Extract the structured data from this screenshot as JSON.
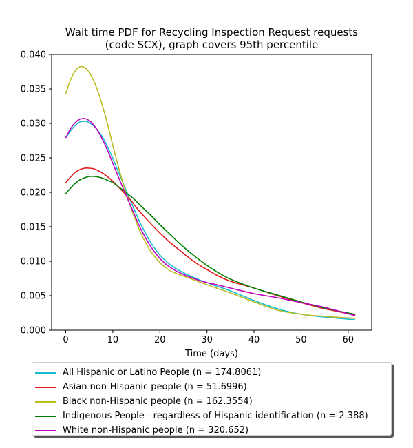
{
  "chart_data": {
    "type": "line",
    "title_line1": "Wait time PDF for Recycling Inspection Request  requests",
    "title_line2": "(code SCX), graph covers 95th percentile",
    "xlabel": "Time (days)",
    "ylabel": "",
    "xlim": [
      -3,
      65
    ],
    "ylim": [
      0,
      0.04
    ],
    "x_ticks": [
      0,
      10,
      20,
      30,
      40,
      50,
      60
    ],
    "y_ticks": [
      "0.000",
      "0.005",
      "0.010",
      "0.015",
      "0.020",
      "0.025",
      "0.030",
      "0.035",
      "0.040"
    ],
    "x": [
      0,
      1,
      2,
      3,
      4,
      5,
      6,
      7,
      8,
      9,
      10,
      12,
      14,
      15,
      16,
      18,
      20,
      22,
      24,
      26,
      28,
      30,
      32,
      35,
      40,
      45,
      50,
      55,
      61.5
    ],
    "series": [
      {
        "name": "All Hispanic or Latino People (n = 174.8061)",
        "color": "#17becf",
        "values": [
          0.0279,
          0.0289,
          0.0297,
          0.0302,
          0.0303,
          0.0301,
          0.0296,
          0.0288,
          0.0278,
          0.0264,
          0.0249,
          0.0216,
          0.0184,
          0.0168,
          0.0153,
          0.0128,
          0.0109,
          0.0096,
          0.0087,
          0.008,
          0.0074,
          0.0069,
          0.0064,
          0.0057,
          0.0043,
          0.0031,
          0.0023,
          0.0019,
          0.0015
        ]
      },
      {
        "name": "Asian non-Hispanic people (n = 51.6996)",
        "color": "#e41a1c",
        "values": [
          0.0214,
          0.0222,
          0.0229,
          0.0233,
          0.0235,
          0.0235,
          0.0234,
          0.0231,
          0.0227,
          0.0222,
          0.0216,
          0.0202,
          0.0187,
          0.0178,
          0.017,
          0.0155,
          0.0141,
          0.0128,
          0.0117,
          0.0106,
          0.0096,
          0.0088,
          0.008,
          0.0071,
          0.0061,
          0.005,
          0.004,
          0.0031,
          0.0022
        ]
      },
      {
        "name": "Black non-Hispanic people (n = 162.3554)",
        "color": "#bcbd22",
        "values": [
          0.0343,
          0.0363,
          0.0376,
          0.0382,
          0.0381,
          0.0374,
          0.0361,
          0.0343,
          0.0321,
          0.0296,
          0.0268,
          0.0217,
          0.0175,
          0.0157,
          0.014,
          0.0115,
          0.0098,
          0.0087,
          0.0081,
          0.0076,
          0.0071,
          0.0066,
          0.0061,
          0.0054,
          0.0041,
          0.0029,
          0.0023,
          0.002,
          0.0017
        ]
      },
      {
        "name": "Indigenous People - regardless of Hispanic identification (n = 2.388)",
        "color": "#008000",
        "values": [
          0.0198,
          0.0206,
          0.0213,
          0.0218,
          0.0221,
          0.0223,
          0.0223,
          0.0222,
          0.022,
          0.0217,
          0.0214,
          0.0204,
          0.0193,
          0.0187,
          0.018,
          0.0167,
          0.0153,
          0.014,
          0.0127,
          0.0115,
          0.0104,
          0.0094,
          0.0085,
          0.0074,
          0.0061,
          0.0051,
          0.0041,
          0.0032,
          0.0023
        ]
      },
      {
        "name": "White non-Hispanic people (n = 320.652)",
        "color": "#bf00bf",
        "values": [
          0.0279,
          0.0292,
          0.0301,
          0.0306,
          0.0307,
          0.0304,
          0.0297,
          0.0287,
          0.0274,
          0.0259,
          0.0242,
          0.0209,
          0.0177,
          0.0161,
          0.0146,
          0.0122,
          0.0104,
          0.0092,
          0.0084,
          0.0078,
          0.0073,
          0.0069,
          0.0066,
          0.0061,
          0.0053,
          0.0047,
          0.004,
          0.0033,
          0.0021
        ]
      }
    ]
  }
}
